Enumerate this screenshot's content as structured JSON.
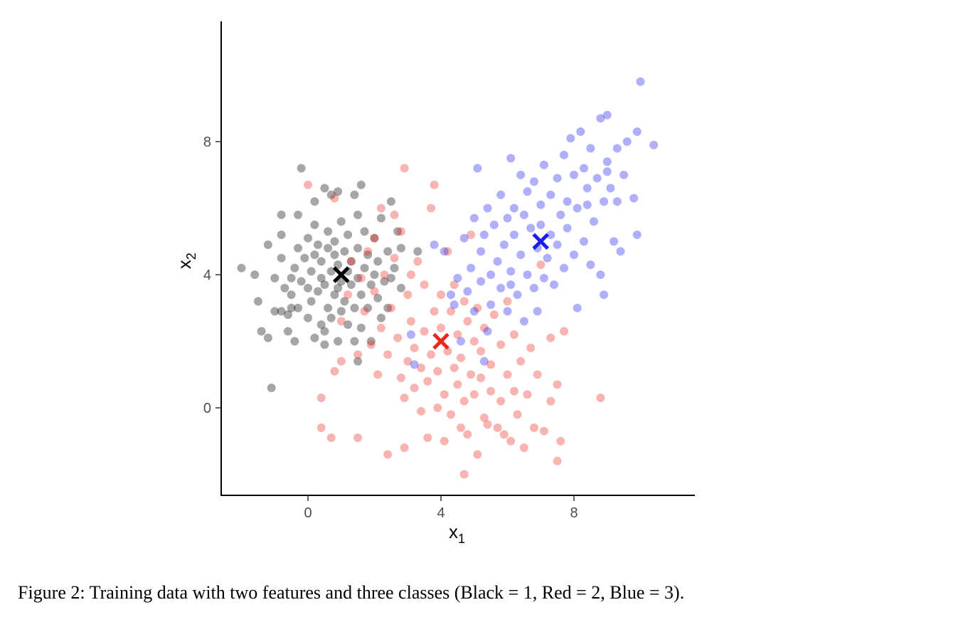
{
  "caption": "Figure 2: Training data with two features and three classes (Black = 1, Red = 2, Blue = 3).",
  "chart_data": {
    "type": "scatter",
    "xlabel": "x",
    "xlabel_subscript": "1",
    "ylabel": "x",
    "ylabel_subscript": "2",
    "xlim": [
      -2.6,
      11.6
    ],
    "ylim": [
      -2.6,
      11.6
    ],
    "x_ticks": [
      0,
      4,
      8
    ],
    "y_ticks": [
      0,
      4,
      8
    ],
    "grid": false,
    "legend": "none",
    "colors": {
      "class1": "#000000",
      "class2": "#e8291c",
      "class3": "#1c1cf0"
    },
    "series": [
      {
        "name": "Black = 1",
        "color": "#000000",
        "point_alpha": 0.35,
        "centroid": [
          1,
          4
        ],
        "points": [
          [
            -2.0,
            4.2
          ],
          [
            -1.6,
            4.0
          ],
          [
            -1.5,
            3.2
          ],
          [
            -1.4,
            2.3
          ],
          [
            -1.2,
            2.1
          ],
          [
            -1.2,
            4.9
          ],
          [
            -1.1,
            0.6
          ],
          [
            -1.0,
            2.9
          ],
          [
            -1.0,
            3.9
          ],
          [
            -0.8,
            2.9
          ],
          [
            -0.8,
            4.5
          ],
          [
            -0.8,
            5.2
          ],
          [
            -0.8,
            5.8
          ],
          [
            -0.7,
            3.6
          ],
          [
            -0.6,
            2.3
          ],
          [
            -0.6,
            2.8
          ],
          [
            -0.5,
            3.4
          ],
          [
            -0.5,
            3.9
          ],
          [
            -0.4,
            2.0
          ],
          [
            -0.4,
            4.2
          ],
          [
            -0.3,
            3.0
          ],
          [
            -0.3,
            4.8
          ],
          [
            -0.3,
            5.8
          ],
          [
            -0.2,
            7.2
          ],
          [
            -0.2,
            3.8
          ],
          [
            -0.1,
            4.5
          ],
          [
            0.0,
            3.6
          ],
          [
            0.0,
            2.7
          ],
          [
            0.0,
            5.1
          ],
          [
            0.1,
            3.2
          ],
          [
            0.1,
            4.1
          ],
          [
            0.2,
            2.1
          ],
          [
            0.2,
            4.6
          ],
          [
            0.2,
            5.5
          ],
          [
            0.2,
            6.2
          ],
          [
            0.3,
            3.5
          ],
          [
            0.3,
            4.9
          ],
          [
            0.4,
            2.5
          ],
          [
            0.4,
            3.9
          ],
          [
            0.4,
            4.4
          ],
          [
            0.5,
            2.3
          ],
          [
            0.5,
            6.6
          ],
          [
            0.5,
            1.9
          ],
          [
            0.5,
            3.7
          ],
          [
            0.6,
            3.0
          ],
          [
            0.6,
            4.8
          ],
          [
            0.6,
            5.3
          ],
          [
            0.7,
            4.1
          ],
          [
            0.7,
            6.4
          ],
          [
            0.7,
            2.7
          ],
          [
            0.8,
            3.4
          ],
          [
            0.8,
            4.6
          ],
          [
            0.8,
            5.0
          ],
          [
            0.9,
            2.0
          ],
          [
            0.9,
            3.6
          ],
          [
            0.9,
            4.3
          ],
          [
            0.9,
            6.5
          ],
          [
            1.0,
            2.9
          ],
          [
            1.0,
            3.8
          ],
          [
            1.0,
            5.6
          ],
          [
            1.1,
            4.7
          ],
          [
            1.1,
            3.2
          ],
          [
            1.2,
            2.5
          ],
          [
            1.2,
            4.1
          ],
          [
            1.2,
            5.2
          ],
          [
            1.3,
            3.7
          ],
          [
            1.3,
            4.4
          ],
          [
            1.4,
            3.0
          ],
          [
            1.4,
            6.4
          ],
          [
            1.4,
            2.0
          ],
          [
            1.5,
            3.9
          ],
          [
            1.5,
            4.8
          ],
          [
            1.5,
            5.8
          ],
          [
            1.6,
            2.4
          ],
          [
            1.6,
            3.4
          ],
          [
            1.6,
            6.7
          ],
          [
            1.7,
            4.2
          ],
          [
            1.7,
            5.3
          ],
          [
            1.8,
            3.0
          ],
          [
            1.8,
            4.6
          ],
          [
            1.9,
            3.7
          ],
          [
            1.9,
            2.0
          ],
          [
            2.0,
            4.0
          ],
          [
            2.0,
            5.1
          ],
          [
            2.1,
            3.3
          ],
          [
            2.1,
            4.4
          ],
          [
            2.2,
            2.7
          ],
          [
            2.2,
            5.7
          ],
          [
            2.3,
            3.8
          ],
          [
            2.4,
            4.7
          ],
          [
            2.4,
            3.0
          ],
          [
            2.5,
            6.2
          ],
          [
            2.5,
            3.9
          ],
          [
            2.6,
            4.2
          ],
          [
            2.7,
            5.3
          ],
          [
            2.8,
            3.6
          ],
          [
            2.8,
            4.8
          ],
          [
            3.3,
            4.7
          ],
          [
            1.5,
            1.4
          ],
          [
            -0.5,
            3.0
          ]
        ]
      },
      {
        "name": "Red = 2",
        "color": "#e8291c",
        "point_alpha": 0.35,
        "centroid": [
          4,
          2
        ],
        "points": [
          [
            0.0,
            6.7
          ],
          [
            0.4,
            0.3
          ],
          [
            0.4,
            -0.6
          ],
          [
            0.7,
            -0.9
          ],
          [
            0.8,
            1.1
          ],
          [
            0.8,
            6.3
          ],
          [
            1.0,
            1.4
          ],
          [
            1.0,
            2.6
          ],
          [
            1.2,
            3.4
          ],
          [
            1.3,
            4.4
          ],
          [
            1.5,
            -0.9
          ],
          [
            1.5,
            1.6
          ],
          [
            1.6,
            3.9
          ],
          [
            1.7,
            2.9
          ],
          [
            1.8,
            4.7
          ],
          [
            1.9,
            1.9
          ],
          [
            2.0,
            3.5
          ],
          [
            2.0,
            5.1
          ],
          [
            2.1,
            1.0
          ],
          [
            2.2,
            2.4
          ],
          [
            2.3,
            4.0
          ],
          [
            2.4,
            -1.4
          ],
          [
            2.4,
            1.6
          ],
          [
            2.5,
            3.0
          ],
          [
            2.6,
            5.8
          ],
          [
            2.6,
            4.5
          ],
          [
            2.7,
            2.1
          ],
          [
            2.8,
            0.9
          ],
          [
            2.8,
            5.3
          ],
          [
            2.9,
            -1.2
          ],
          [
            2.9,
            0.3
          ],
          [
            2.9,
            7.2
          ],
          [
            3.0,
            1.4
          ],
          [
            3.0,
            3.4
          ],
          [
            3.1,
            2.6
          ],
          [
            3.2,
            0.6
          ],
          [
            3.2,
            1.8
          ],
          [
            3.3,
            4.4
          ],
          [
            3.4,
            -0.1
          ],
          [
            3.4,
            1.2
          ],
          [
            3.5,
            2.3
          ],
          [
            3.5,
            3.7
          ],
          [
            3.6,
            -0.9
          ],
          [
            3.6,
            0.8
          ],
          [
            3.7,
            1.6
          ],
          [
            3.7,
            6.0
          ],
          [
            3.8,
            2.9
          ],
          [
            3.8,
            6.7
          ],
          [
            3.9,
            0.0
          ],
          [
            3.9,
            1.1
          ],
          [
            4.0,
            2.4
          ],
          [
            4.0,
            3.4
          ],
          [
            4.1,
            -1.0
          ],
          [
            4.1,
            0.4
          ],
          [
            4.2,
            1.7
          ],
          [
            4.2,
            4.7
          ],
          [
            4.3,
            -0.2
          ],
          [
            4.3,
            2.9
          ],
          [
            4.4,
            1.2
          ],
          [
            4.4,
            3.7
          ],
          [
            4.5,
            0.7
          ],
          [
            4.5,
            2.2
          ],
          [
            4.6,
            -0.6
          ],
          [
            4.6,
            1.5
          ],
          [
            4.7,
            -2.0
          ],
          [
            4.7,
            0.2
          ],
          [
            4.7,
            3.2
          ],
          [
            4.8,
            2.6
          ],
          [
            4.8,
            -0.8
          ],
          [
            4.9,
            1.0
          ],
          [
            4.9,
            5.2
          ],
          [
            5.0,
            0.4
          ],
          [
            5.0,
            2.0
          ],
          [
            5.1,
            -1.4
          ],
          [
            5.1,
            3.0
          ],
          [
            5.2,
            0.9
          ],
          [
            5.2,
            1.7
          ],
          [
            5.3,
            -0.3
          ],
          [
            5.3,
            2.4
          ],
          [
            5.4,
            -0.5
          ],
          [
            5.5,
            1.3
          ],
          [
            5.5,
            0.5
          ],
          [
            5.6,
            2.8
          ],
          [
            5.7,
            -0.6
          ],
          [
            5.8,
            1.9
          ],
          [
            5.8,
            0.2
          ],
          [
            5.9,
            -0.8
          ],
          [
            6.0,
            1.0
          ],
          [
            6.0,
            3.2
          ],
          [
            6.1,
            -1.0
          ],
          [
            6.2,
            0.5
          ],
          [
            6.2,
            2.2
          ],
          [
            6.3,
            -0.2
          ],
          [
            6.4,
            1.4
          ],
          [
            6.5,
            -1.2
          ],
          [
            6.6,
            0.4
          ],
          [
            6.7,
            1.8
          ],
          [
            6.8,
            -0.6
          ],
          [
            6.9,
            1.0
          ],
          [
            7.0,
            4.3
          ],
          [
            7.1,
            -0.7
          ],
          [
            7.3,
            2.1
          ],
          [
            7.3,
            0.2
          ],
          [
            7.5,
            -1.6
          ],
          [
            7.5,
            0.7
          ],
          [
            7.6,
            -1.0
          ],
          [
            7.7,
            2.3
          ],
          [
            8.8,
            0.3
          ],
          [
            2.2,
            6.0
          ],
          [
            3.1,
            4.0
          ]
        ]
      },
      {
        "name": "Blue = 3",
        "color": "#1c1cf0",
        "point_alpha": 0.35,
        "centroid": [
          7,
          5
        ],
        "points": [
          [
            3.1,
            2.2
          ],
          [
            3.2,
            1.3
          ],
          [
            3.8,
            4.9
          ],
          [
            4.1,
            4.7
          ],
          [
            4.3,
            3.4
          ],
          [
            4.5,
            3.9
          ],
          [
            4.6,
            2.0
          ],
          [
            4.7,
            5.1
          ],
          [
            4.8,
            3.5
          ],
          [
            4.9,
            4.2
          ],
          [
            5.0,
            2.9
          ],
          [
            5.0,
            5.7
          ],
          [
            5.1,
            7.2
          ],
          [
            5.2,
            3.8
          ],
          [
            5.2,
            4.7
          ],
          [
            5.3,
            5.2
          ],
          [
            5.4,
            2.3
          ],
          [
            5.4,
            6.0
          ],
          [
            5.5,
            4.0
          ],
          [
            5.5,
            3.1
          ],
          [
            5.6,
            5.5
          ],
          [
            5.7,
            4.4
          ],
          [
            5.8,
            6.4
          ],
          [
            5.8,
            3.6
          ],
          [
            5.9,
            4.9
          ],
          [
            6.0,
            5.7
          ],
          [
            6.0,
            2.9
          ],
          [
            6.1,
            7.5
          ],
          [
            6.1,
            4.1
          ],
          [
            6.2,
            6.0
          ],
          [
            6.2,
            5.2
          ],
          [
            6.3,
            3.4
          ],
          [
            6.4,
            7.0
          ],
          [
            6.4,
            4.6
          ],
          [
            6.5,
            5.8
          ],
          [
            6.5,
            2.6
          ],
          [
            6.6,
            6.5
          ],
          [
            6.6,
            4.0
          ],
          [
            6.7,
            5.4
          ],
          [
            6.8,
            3.6
          ],
          [
            6.8,
            6.8
          ],
          [
            6.9,
            4.8
          ],
          [
            7.0,
            6.1
          ],
          [
            7.0,
            5.5
          ],
          [
            7.1,
            3.9
          ],
          [
            7.1,
            7.3
          ],
          [
            7.2,
            4.5
          ],
          [
            7.3,
            6.4
          ],
          [
            7.3,
            5.2
          ],
          [
            7.4,
            3.7
          ],
          [
            7.5,
            6.9
          ],
          [
            7.5,
            4.9
          ],
          [
            7.6,
            5.8
          ],
          [
            7.7,
            4.2
          ],
          [
            7.7,
            7.6
          ],
          [
            7.8,
            6.2
          ],
          [
            7.8,
            5.4
          ],
          [
            7.9,
            8.1
          ],
          [
            8.0,
            4.6
          ],
          [
            8.0,
            7.0
          ],
          [
            8.1,
            3.0
          ],
          [
            8.1,
            6.0
          ],
          [
            8.2,
            8.3
          ],
          [
            8.3,
            5.0
          ],
          [
            8.3,
            7.2
          ],
          [
            8.4,
            6.6
          ],
          [
            8.5,
            4.3
          ],
          [
            8.5,
            7.8
          ],
          [
            8.6,
            5.6
          ],
          [
            8.7,
            6.9
          ],
          [
            8.8,
            8.7
          ],
          [
            8.8,
            4.0
          ],
          [
            8.9,
            6.2
          ],
          [
            8.9,
            3.4
          ],
          [
            9.0,
            7.4
          ],
          [
            9.0,
            8.8
          ],
          [
            9.1,
            6.6
          ],
          [
            9.2,
            5.0
          ],
          [
            9.3,
            7.8
          ],
          [
            9.3,
            6.2
          ],
          [
            9.4,
            4.7
          ],
          [
            9.5,
            7.0
          ],
          [
            9.6,
            8.0
          ],
          [
            9.8,
            6.3
          ],
          [
            9.9,
            5.2
          ],
          [
            9.9,
            8.3
          ],
          [
            10.0,
            9.8
          ],
          [
            10.4,
            7.9
          ],
          [
            4.4,
            3.1
          ],
          [
            5.3,
            1.4
          ],
          [
            6.1,
            3.7
          ],
          [
            6.9,
            2.9
          ],
          [
            8.4,
            6.1
          ],
          [
            9.0,
            7.1
          ]
        ]
      }
    ]
  }
}
